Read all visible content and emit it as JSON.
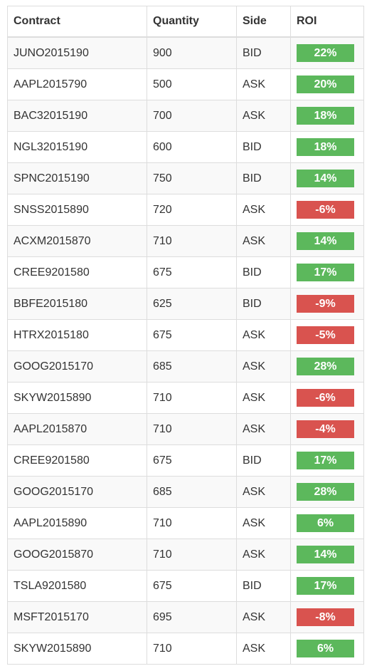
{
  "table": {
    "headers": {
      "contract": "Contract",
      "quantity": "Quantity",
      "side": "Side",
      "roi": "ROI"
    },
    "colors": {
      "positive": "#5cb85c",
      "negative": "#d9534f"
    },
    "rows": [
      {
        "contract": "JUNO2015190",
        "quantity": "900",
        "side": "BID",
        "roi": "22%",
        "status": "positive"
      },
      {
        "contract": "AAPL2015790",
        "quantity": "500",
        "side": "ASK",
        "roi": "20%",
        "status": "positive"
      },
      {
        "contract": "BAC32015190",
        "quantity": "700",
        "side": "ASK",
        "roi": "18%",
        "status": "positive"
      },
      {
        "contract": "NGL32015190",
        "quantity": "600",
        "side": "BID",
        "roi": "18%",
        "status": "positive"
      },
      {
        "contract": "SPNC2015190",
        "quantity": "750",
        "side": "BID",
        "roi": "14%",
        "status": "positive"
      },
      {
        "contract": "SNSS2015890",
        "quantity": "720",
        "side": "ASK",
        "roi": "-6%",
        "status": "negative"
      },
      {
        "contract": "ACXM2015870",
        "quantity": "710",
        "side": "ASK",
        "roi": "14%",
        "status": "positive"
      },
      {
        "contract": "CREE9201580",
        "quantity": "675",
        "side": "BID",
        "roi": "17%",
        "status": "positive"
      },
      {
        "contract": "BBFE2015180",
        "quantity": "625",
        "side": "BID",
        "roi": "-9%",
        "status": "negative"
      },
      {
        "contract": "HTRX2015180",
        "quantity": "675",
        "side": "ASK",
        "roi": "-5%",
        "status": "negative"
      },
      {
        "contract": "GOOG2015170",
        "quantity": "685",
        "side": "ASK",
        "roi": "28%",
        "status": "positive"
      },
      {
        "contract": "SKYW2015890",
        "quantity": "710",
        "side": "ASK",
        "roi": "-6%",
        "status": "negative"
      },
      {
        "contract": "AAPL2015870",
        "quantity": "710",
        "side": "ASK",
        "roi": "-4%",
        "status": "negative"
      },
      {
        "contract": "CREE9201580",
        "quantity": "675",
        "side": "BID",
        "roi": "17%",
        "status": "positive"
      },
      {
        "contract": "GOOG2015170",
        "quantity": "685",
        "side": "ASK",
        "roi": "28%",
        "status": "positive"
      },
      {
        "contract": "AAPL2015890",
        "quantity": "710",
        "side": "ASK",
        "roi": "6%",
        "status": "positive"
      },
      {
        "contract": "GOOG2015870",
        "quantity": "710",
        "side": "ASK",
        "roi": "14%",
        "status": "positive"
      },
      {
        "contract": "TSLA9201580",
        "quantity": "675",
        "side": "BID",
        "roi": "17%",
        "status": "positive"
      },
      {
        "contract": "MSFT2015170",
        "quantity": "695",
        "side": "ASK",
        "roi": "-8%",
        "status": "negative"
      },
      {
        "contract": "SKYW2015890",
        "quantity": "710",
        "side": "ASK",
        "roi": "6%",
        "status": "positive"
      }
    ]
  }
}
